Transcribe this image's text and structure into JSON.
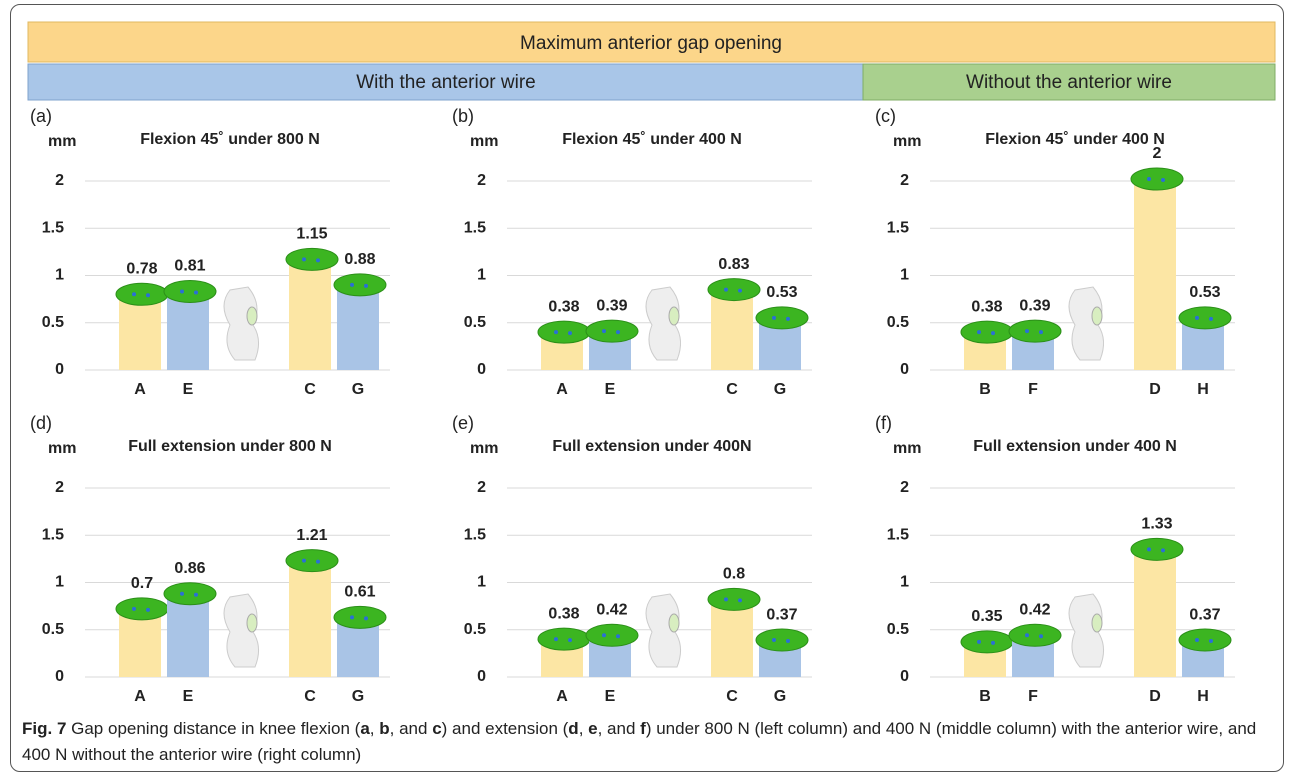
{
  "header": {
    "title": "Maximum anterior gap opening",
    "left": "With the anterior wire",
    "right": "Without the anterior wire"
  },
  "chart_data": [
    {
      "type": "bar",
      "panel": "(a)",
      "title": "Flexion 45˚ under 800 N",
      "ylabel": "mm",
      "categories": [
        "A",
        "E",
        "C",
        "G"
      ],
      "values": [
        0.78,
        0.81,
        1.15,
        0.88
      ],
      "colors": [
        "#fce6a4",
        "#a9c4e6",
        "#fce6a4",
        "#a9c4e6"
      ],
      "ylim": [
        0,
        2
      ],
      "yticks": [
        0,
        0.5,
        1,
        1.5,
        2
      ],
      "grid": true
    },
    {
      "type": "bar",
      "panel": "(b)",
      "title": "Flexion 45˚ under 400 N",
      "ylabel": "mm",
      "categories": [
        "A",
        "E",
        "C",
        "G"
      ],
      "values": [
        0.38,
        0.39,
        0.83,
        0.53
      ],
      "colors": [
        "#fce6a4",
        "#a9c4e6",
        "#fce6a4",
        "#a9c4e6"
      ],
      "ylim": [
        0,
        2
      ],
      "yticks": [
        0,
        0.5,
        1,
        1.5,
        2
      ],
      "grid": true
    },
    {
      "type": "bar",
      "panel": "(c)",
      "title": "Flexion 45˚ under 400 N",
      "ylabel": "mm",
      "categories": [
        "B",
        "F",
        "D",
        "H"
      ],
      "values": [
        0.38,
        0.39,
        2,
        0.53
      ],
      "colors": [
        "#fce6a4",
        "#a9c4e6",
        "#fce6a4",
        "#a9c4e6"
      ],
      "ylim": [
        0,
        2
      ],
      "yticks": [
        0,
        0.5,
        1,
        1.5,
        2
      ],
      "grid": true
    },
    {
      "type": "bar",
      "panel": "(d)",
      "title": "Full extension under 800 N",
      "ylabel": "mm",
      "categories": [
        "A",
        "E",
        "C",
        "G"
      ],
      "values": [
        0.7,
        0.86,
        1.21,
        0.61
      ],
      "colors": [
        "#fce6a4",
        "#a9c4e6",
        "#fce6a4",
        "#a9c4e6"
      ],
      "ylim": [
        0,
        2
      ],
      "yticks": [
        0,
        0.5,
        1,
        1.5,
        2
      ],
      "grid": true
    },
    {
      "type": "bar",
      "panel": "(e)",
      "title": "Full extension under 400N",
      "ylabel": "mm",
      "categories": [
        "A",
        "E",
        "C",
        "G"
      ],
      "values": [
        0.38,
        0.42,
        0.8,
        0.37
      ],
      "colors": [
        "#fce6a4",
        "#a9c4e6",
        "#fce6a4",
        "#a9c4e6"
      ],
      "ylim": [
        0,
        2
      ],
      "yticks": [
        0,
        0.5,
        1,
        1.5,
        2
      ],
      "grid": true
    },
    {
      "type": "bar",
      "panel": "(f)",
      "title": "Full extension under 400 N",
      "ylabel": "mm",
      "categories": [
        "B",
        "F",
        "D",
        "H"
      ],
      "values": [
        0.35,
        0.42,
        1.33,
        0.37
      ],
      "colors": [
        "#fce6a4",
        "#a9c4e6",
        "#fce6a4",
        "#a9c4e6"
      ],
      "ylim": [
        0,
        2
      ],
      "yticks": [
        0,
        0.5,
        1,
        1.5,
        2
      ],
      "grid": true
    }
  ],
  "caption": [
    {
      "text": "Fig. 7",
      "bold": true
    },
    {
      "text": " Gap opening distance in knee flexion (",
      "bold": false
    },
    {
      "text": "a",
      "bold": true
    },
    {
      "text": ", ",
      "bold": false
    },
    {
      "text": "b",
      "bold": true
    },
    {
      "text": ", and ",
      "bold": false
    },
    {
      "text": "c",
      "bold": true
    },
    {
      "text": ") and extension (",
      "bold": false
    },
    {
      "text": "d",
      "bold": true
    },
    {
      "text": ", ",
      "bold": false
    },
    {
      "text": "e",
      "bold": true
    },
    {
      "text": ", and ",
      "bold": false
    },
    {
      "text": "f",
      "bold": true
    },
    {
      "text": ") under 800 N (left column) and 400 N (middle column) with the anterior wire, and 400 N without the anterior wire (right column)",
      "bold": false
    }
  ]
}
